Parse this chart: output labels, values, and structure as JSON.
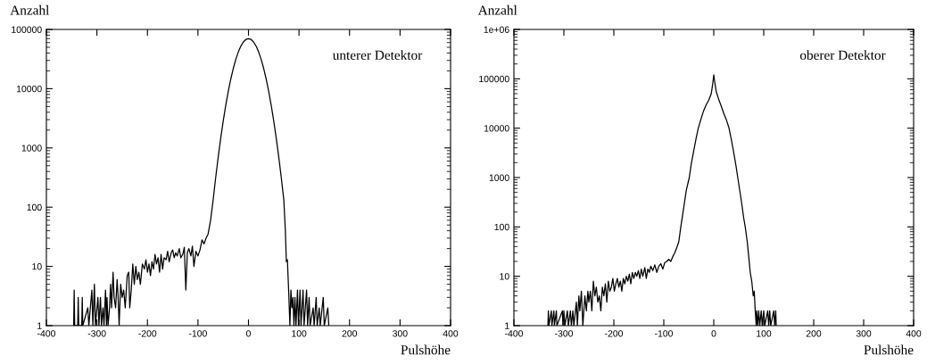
{
  "chart_data": [
    {
      "type": "line",
      "xlabel": "Pulshöhe",
      "ylabel": "Anzahl",
      "annotations": [
        "unterer Detektor"
      ],
      "log": "y",
      "xlim": [
        -400,
        400
      ],
      "xticks": [
        -400,
        -300,
        -200,
        -100,
        0,
        100,
        200,
        300,
        400
      ],
      "ylim": [
        1,
        100000
      ],
      "yticks": [
        1,
        10,
        100,
        1000,
        10000,
        100000
      ],
      "x": [
        -346,
        -345,
        -344,
        -338,
        -337,
        -336,
        -330,
        -329,
        -328,
        -318,
        -316,
        -310,
        -308,
        -305,
        -303,
        -298,
        -296,
        -293,
        -291,
        -288,
        -286,
        -283,
        -281,
        -280,
        -278,
        -275,
        -273,
        -271,
        -268,
        -266,
        -263,
        -260,
        -258,
        -256,
        -253,
        -250,
        -247,
        -244,
        -240,
        -237,
        -235,
        -232,
        -229,
        -226,
        -223,
        -220,
        -217,
        -214,
        -210,
        -206,
        -203,
        -200,
        -197,
        -194,
        -191,
        -188,
        -185,
        -182,
        -179,
        -176,
        -173,
        -170,
        -167,
        -163,
        -160,
        -157,
        -153,
        -150,
        -147,
        -144,
        -141,
        -137,
        -134,
        -130,
        -127,
        -124,
        -121,
        -118,
        -114,
        -111,
        -108,
        -104,
        -100,
        -96,
        -92,
        -88,
        -84,
        -80,
        -75,
        -70,
        -65,
        -60,
        -55,
        -50,
        -45,
        -40,
        -35,
        -30,
        -25,
        -20,
        -15,
        -10,
        -5,
        0,
        5,
        10,
        15,
        20,
        25,
        30,
        35,
        40,
        45,
        50,
        55,
        60,
        65,
        70,
        73,
        75,
        77,
        79,
        80,
        82,
        84,
        86,
        88,
        90,
        92,
        94,
        97,
        99,
        102,
        104,
        108,
        110,
        115,
        117,
        120,
        122,
        128,
        130,
        134,
        136,
        140,
        142,
        148,
        150,
        157,
        159
      ],
      "series": [
        {
          "color": "#000000",
          "values": [
            1,
            4,
            1,
            1,
            3,
            1,
            1,
            3,
            1,
            2,
            1,
            4,
            1,
            5,
            1,
            3,
            1,
            3,
            1,
            2,
            1,
            4,
            1,
            3,
            1,
            2,
            5,
            2,
            8,
            3,
            2,
            6,
            3,
            1,
            5,
            3,
            4,
            2,
            7,
            8,
            2,
            4,
            11,
            5,
            10,
            6,
            8,
            5,
            11,
            9,
            13,
            8,
            11,
            7,
            12,
            9,
            16,
            11,
            14,
            8,
            16,
            9,
            14,
            13,
            18,
            12,
            17,
            19,
            14,
            17,
            15,
            20,
            14,
            16,
            21,
            4,
            17,
            20,
            15,
            22,
            10,
            18,
            15,
            19,
            28,
            24,
            30,
            35,
            60,
            131,
            311,
            693,
            1450,
            2840,
            5220,
            9000,
            14600,
            22100,
            31400,
            41900,
            52500,
            61600,
            67800,
            70000,
            67800,
            61600,
            52500,
            41900,
            31400,
            22100,
            14600,
            9000,
            5220,
            2840,
            1450,
            693,
            311,
            131,
            40,
            12,
            13,
            5,
            3,
            1,
            4,
            2,
            3,
            1,
            3,
            1,
            4,
            1,
            4,
            1,
            4,
            1,
            4,
            1,
            3,
            1,
            2,
            1,
            3,
            1,
            2,
            1,
            3,
            1,
            2,
            1
          ]
        }
      ]
    },
    {
      "type": "line",
      "xlabel": "Pulshöhe",
      "ylabel": "Anzahl",
      "annotations": [
        "oberer Detektor"
      ],
      "log": "y",
      "xlim": [
        -400,
        400
      ],
      "xticks": [
        -400,
        -300,
        -200,
        -100,
        0,
        100,
        200,
        300,
        400
      ],
      "ylim": [
        1,
        1000000
      ],
      "yticks": [
        1,
        10,
        100,
        1000,
        10000,
        100000,
        {
          "value": 1000000,
          "label": "1e+06"
        }
      ],
      "x": [
        -332,
        -331,
        -330,
        -325,
        -324,
        -320,
        -319,
        -315,
        -314,
        -303,
        -302,
        -300,
        -298,
        -293,
        -291,
        -287,
        -285,
        -282,
        -280,
        -275,
        -273,
        -270,
        -268,
        -265,
        -262,
        -258,
        -255,
        -252,
        -250,
        -247,
        -244,
        -241,
        -238,
        -235,
        -232,
        -229,
        -226,
        -223,
        -220,
        -217,
        -214,
        -211,
        -208,
        -205,
        -202,
        -199,
        -196,
        -193,
        -190,
        -187,
        -184,
        -181,
        -178,
        -175,
        -172,
        -169,
        -166,
        -163,
        -160,
        -157,
        -154,
        -151,
        -148,
        -145,
        -142,
        -138,
        -135,
        -132,
        -129,
        -126,
        -122,
        -118,
        -114,
        -110,
        -106,
        -102,
        -98,
        -94,
        -90,
        -86,
        -82,
        -78,
        -74,
        -70,
        -66,
        -60,
        -55,
        -49,
        -45,
        -40,
        -35,
        -31,
        -25,
        -20,
        -15,
        -10,
        -5,
        -2,
        0,
        2,
        5,
        10,
        15,
        20,
        25,
        30,
        35,
        40,
        45,
        48,
        55,
        60,
        63,
        67,
        70,
        73,
        76,
        79,
        81,
        83,
        85,
        86,
        88,
        90,
        92,
        95,
        97,
        100,
        102,
        108,
        110,
        112,
        114,
        120,
        122,
        124,
        125
      ],
      "series": [
        {
          "color": "#000000",
          "values": [
            1,
            2,
            1,
            2,
            1,
            2,
            1,
            2,
            1,
            2,
            1,
            2,
            1,
            2,
            1,
            2,
            1,
            2,
            1,
            3,
            1,
            4,
            2,
            5,
            1,
            4,
            2,
            5,
            3,
            5,
            2,
            8,
            4,
            6,
            3,
            4,
            2,
            6,
            4,
            7,
            3,
            8,
            5,
            6,
            9,
            5,
            7,
            9,
            6,
            8,
            5,
            9,
            7,
            10,
            8,
            11,
            7,
            12,
            9,
            12,
            10,
            13,
            9,
            14,
            10,
            15,
            9,
            14,
            12,
            16,
            13,
            17,
            12,
            16,
            18,
            14,
            19,
            20,
            22,
            20,
            25,
            30,
            38,
            50,
            100,
            250,
            550,
            1000,
            1900,
            3500,
            6500,
            10000,
            16000,
            23000,
            30000,
            37000,
            50000,
            80000,
            120000,
            85000,
            55000,
            38000,
            28000,
            20000,
            15000,
            10500,
            6000,
            3200,
            1600,
            1000,
            350,
            150,
            100,
            50,
            25,
            12,
            8,
            4,
            5,
            2,
            1,
            2,
            1,
            2,
            1,
            2,
            1,
            2,
            1,
            2,
            1,
            2,
            1,
            2,
            1,
            2,
            1
          ]
        }
      ]
    }
  ]
}
